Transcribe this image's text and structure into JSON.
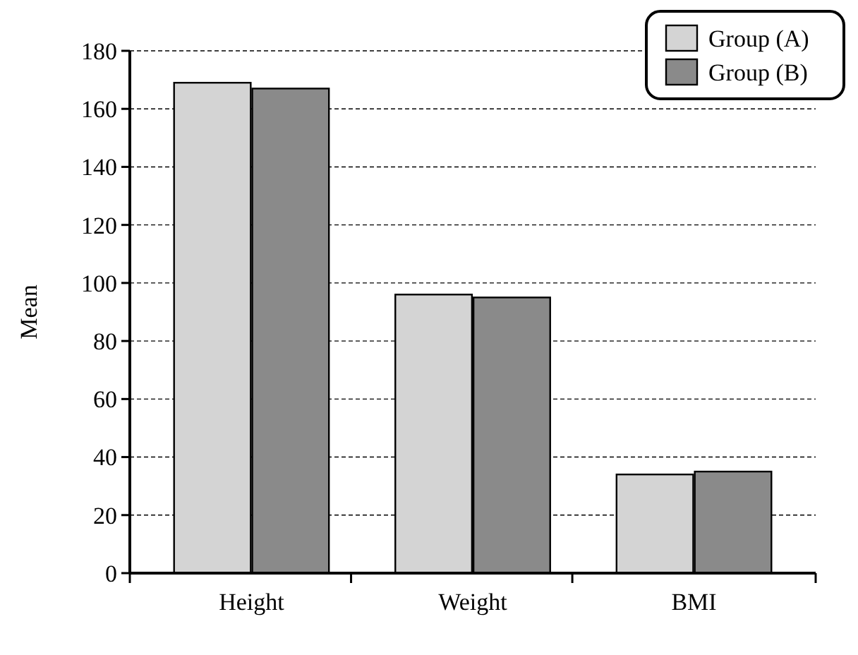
{
  "chart_data": {
    "type": "bar",
    "ylabel": "Mean",
    "categories": [
      "Height",
      "Weight",
      "BMI"
    ],
    "series": [
      {
        "name": "Group (A)",
        "color": "#d4d4d4",
        "values": [
          169,
          96,
          34
        ]
      },
      {
        "name": "Group (B)",
        "color": "#8a8a8a",
        "values": [
          167,
          95,
          35
        ]
      }
    ],
    "ylim": [
      0,
      180
    ],
    "yticks": [
      0,
      20,
      40,
      60,
      80,
      100,
      120,
      140,
      160,
      180
    ],
    "grid": "y",
    "legend": "top right"
  }
}
